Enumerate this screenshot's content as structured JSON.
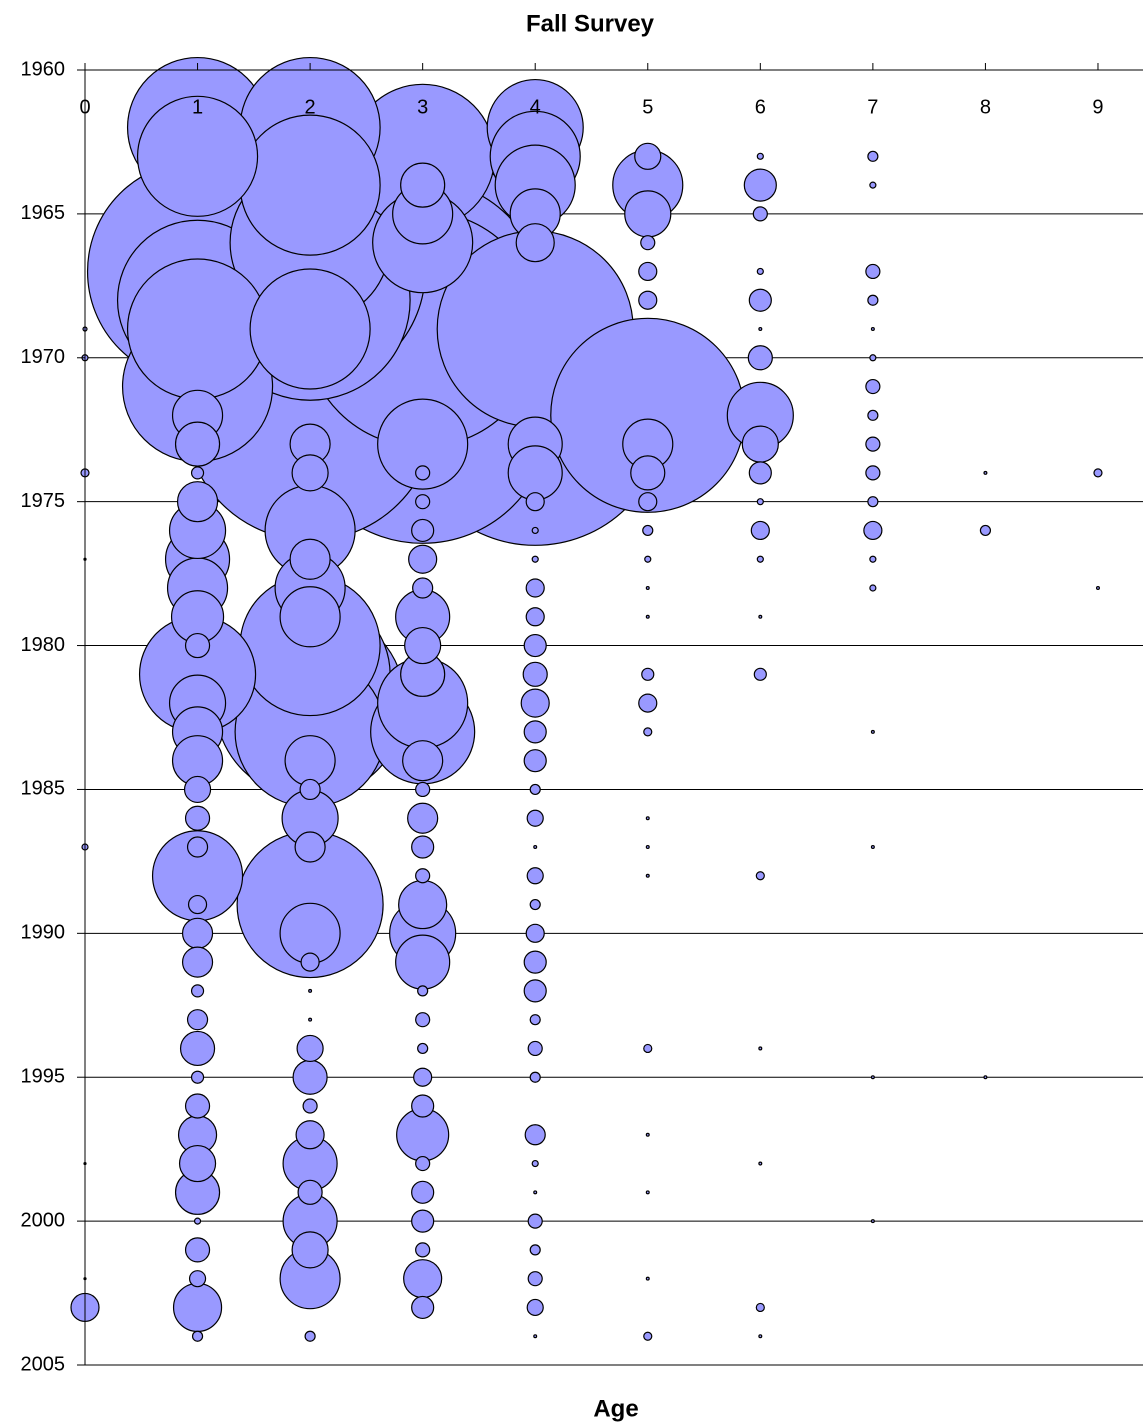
{
  "chart_data": {
    "type": "bubble",
    "title": "Fall Survey",
    "x_label": "Age",
    "color": "#9999ff",
    "xlim": [
      0,
      9.4
    ],
    "xticks": [
      0,
      1,
      2,
      3,
      4,
      5,
      6,
      7,
      8,
      9
    ],
    "ylim": [
      1960,
      2005
    ],
    "yticks": [
      1960,
      1965,
      1970,
      1975,
      1980,
      1985,
      1990,
      1995,
      2000,
      2005
    ],
    "y_reversed": true,
    "grid": true,
    "series": [
      {
        "x": 0,
        "values": [
          1969,
          1970,
          1974,
          1977,
          1987,
          1998,
          2002,
          2003
        ],
        "sizes": [
          4,
          9,
          16,
          1,
          9,
          1,
          1,
          196
        ]
      },
      {
        "x": 1,
        "values": [
          1962,
          1963,
          1967,
          1968,
          1969,
          1971,
          1972,
          1973,
          1974,
          1975,
          1976,
          1977,
          1978,
          1979,
          1980,
          1981,
          1982,
          1983,
          1984,
          1985,
          1986,
          1987,
          1988,
          1989,
          1990,
          1991,
          1992,
          1993,
          1994,
          1995,
          1996,
          1997,
          1998,
          1999,
          2000,
          2001,
          2002,
          2003,
          2004
        ],
        "sizes": [
          4900,
          3600,
          12100,
          6400,
          4900,
          5625,
          625,
          484,
          36,
          400,
          784,
          1024,
          900,
          676,
          144,
          3364,
          784,
          625,
          625,
          169,
          144,
          100,
          2025,
          81,
          225,
          225,
          36,
          100,
          289,
          36,
          144,
          361,
          324,
          484,
          9,
          144,
          64,
          576,
          25
        ]
      },
      {
        "x": 2,
        "values": [
          1962,
          1964,
          1966,
          1967,
          1968,
          1969,
          1972,
          1973,
          1974,
          1976,
          1977,
          1978,
          1979,
          1980,
          1981,
          1982,
          1983,
          1984,
          1985,
          1986,
          1987,
          1989,
          1990,
          1991,
          1992,
          1993,
          1994,
          1995,
          1996,
          1997,
          1998,
          1999,
          2000,
          2001,
          2002,
          2004
        ],
        "sizes": [
          4900,
          4900,
          6400,
          13225,
          10000,
          3600,
          15625,
          400,
          324,
          2025,
          400,
          1225,
          900,
          4900,
          6400,
          9025,
          5625,
          625,
          100,
          784,
          225,
          5329,
          900,
          81,
          2,
          2,
          169,
          289,
          49,
          196,
          729,
          144,
          729,
          324,
          900,
          25
        ]
      },
      {
        "x": 3,
        "values": [
          1963,
          1964,
          1965,
          1966,
          1967,
          1968,
          1969,
          1972,
          1973,
          1974,
          1975,
          1976,
          1977,
          1978,
          1979,
          1980,
          1981,
          1982,
          1983,
          1984,
          1985,
          1986,
          1987,
          1988,
          1989,
          1990,
          1991,
          1992,
          1993,
          1994,
          1995,
          1996,
          1997,
          1998,
          1999,
          2000,
          2001,
          2002,
          2003
        ],
        "sizes": [
          5184,
          484,
          900,
          2500,
          14400,
          14400,
          13924,
          16384,
          2025,
          49,
          49,
          121,
          196,
          100,
          729,
          324,
          484,
          2025,
          2704,
          400,
          49,
          225,
          121,
          49,
          576,
          1089,
          729,
          25,
          49,
          25,
          81,
          121,
          676,
          49,
          121,
          121,
          49,
          361,
          121
        ]
      },
      {
        "x": 4,
        "values": [
          1962,
          1963,
          1964,
          1965,
          1966,
          1969,
          1972,
          1973,
          1974,
          1975,
          1976,
          1977,
          1978,
          1979,
          1980,
          1981,
          1982,
          1983,
          1984,
          1985,
          1986,
          1987,
          1988,
          1989,
          1990,
          1991,
          1992,
          1993,
          1994,
          1995,
          1997,
          1998,
          1999,
          2000,
          2001,
          2002,
          2003,
          2004
        ],
        "sizes": [
          2304,
          2025,
          1600,
          625,
          361,
          9604,
          16900,
          729,
          729,
          81,
          9,
          9,
          81,
          81,
          121,
          144,
          196,
          121,
          121,
          25,
          64,
          2,
          64,
          25,
          81,
          121,
          121,
          25,
          49,
          25,
          100,
          9,
          2,
          49,
          25,
          49,
          64,
          2
        ]
      },
      {
        "x": 5,
        "values": [
          1963,
          1964,
          1965,
          1966,
          1967,
          1968,
          1972,
          1973,
          1974,
          1975,
          1976,
          1977,
          1978,
          1979,
          1981,
          1982,
          1983,
          1986,
          1987,
          1988,
          1994,
          1997,
          1999,
          2002,
          2004
        ],
        "sizes": [
          169,
          1225,
          529,
          49,
          81,
          81,
          9409,
          625,
          289,
          81,
          25,
          9,
          2,
          2,
          36,
          81,
          16,
          2,
          2,
          2,
          16,
          2,
          2,
          2,
          16
        ]
      },
      {
        "x": 6,
        "values": [
          1963,
          1964,
          1965,
          1967,
          1968,
          1969,
          1970,
          1972,
          1973,
          1974,
          1975,
          1976,
          1977,
          1979,
          1981,
          1988,
          1994,
          1998,
          2003,
          2004
        ],
        "sizes": [
          9,
          256,
          49,
          9,
          121,
          2,
          144,
          1089,
          324,
          121,
          9,
          81,
          9,
          2,
          36,
          16,
          2,
          2,
          16,
          2
        ]
      },
      {
        "x": 7,
        "values": [
          1963,
          1964,
          1967,
          1968,
          1969,
          1970,
          1971,
          1972,
          1973,
          1974,
          1975,
          1976,
          1977,
          1978,
          1983,
          1987,
          1995,
          2000
        ],
        "sizes": [
          25,
          9,
          49,
          25,
          2,
          9,
          49,
          25,
          49,
          49,
          25,
          81,
          9,
          9,
          2,
          2,
          2,
          2
        ]
      },
      {
        "x": 8,
        "values": [
          1974,
          1976,
          1995
        ],
        "sizes": [
          2,
          25,
          2
        ]
      },
      {
        "x": 9,
        "values": [
          1974,
          1978
        ],
        "sizes": [
          16,
          2
        ]
      }
    ]
  }
}
